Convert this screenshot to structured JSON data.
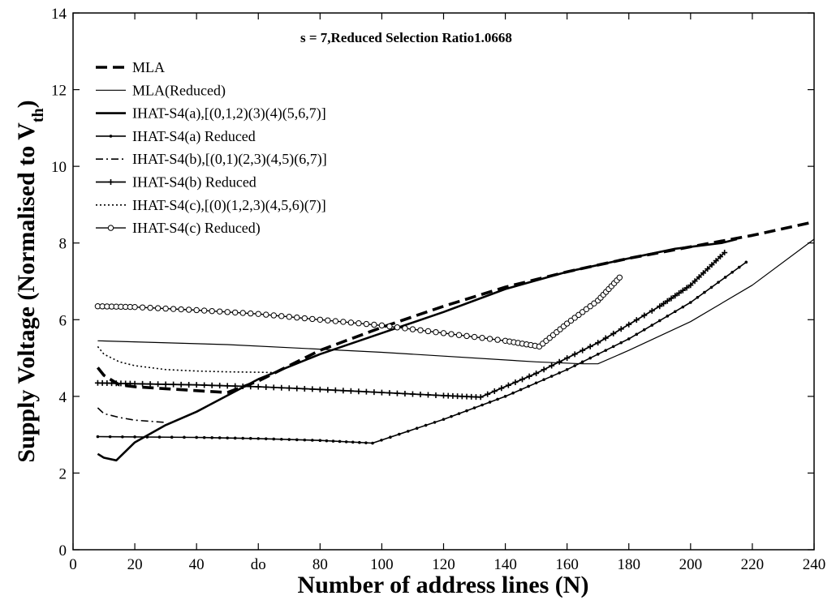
{
  "chart_data": {
    "type": "line",
    "title": "",
    "annotation": "s = 7,Reduced Selection Ratio1.0668",
    "xlabel": "Number of address lines (N)",
    "ylabel": "Supply Voltage (Normalised to V",
    "ylabel_sub": "th",
    "ylabel_close": ")",
    "xlim": [
      0,
      240
    ],
    "ylim": [
      0,
      14
    ],
    "xticks": [
      0,
      20,
      40,
      60,
      80,
      100,
      120,
      140,
      160,
      180,
      200,
      220,
      240
    ],
    "xtick_labels": [
      "0",
      "20",
      "40",
      "do",
      "80",
      "100",
      "120",
      "140",
      "160",
      "180",
      "200",
      "220",
      "240"
    ],
    "yticks": [
      0,
      2,
      4,
      6,
      8,
      10,
      12,
      14
    ],
    "grid": false,
    "legend_position": "top-left",
    "series": [
      {
        "name": "MLA",
        "style": "dashed-thick",
        "x": [
          8,
          10,
          15,
          20,
          30,
          40,
          50,
          60,
          80,
          100,
          120,
          140,
          160,
          180,
          200,
          220,
          240
        ],
        "y": [
          4.75,
          4.55,
          4.3,
          4.25,
          4.2,
          4.15,
          4.1,
          4.4,
          5.2,
          5.8,
          6.35,
          6.85,
          7.25,
          7.6,
          7.9,
          8.2,
          8.55
        ]
      },
      {
        "name": "MLA(Reduced)",
        "style": "solid-thin",
        "x": [
          8,
          50,
          100,
          150,
          165,
          170,
          180,
          200,
          220,
          240
        ],
        "y": [
          5.45,
          5.35,
          5.15,
          4.9,
          4.85,
          4.85,
          5.2,
          5.95,
          6.9,
          8.1
        ]
      },
      {
        "name": "IHAT-S4(a),[(0,1,2)(3)(4)(5,6,7)]",
        "style": "solid-thick",
        "x": [
          8,
          10,
          14,
          20,
          30,
          40,
          60,
          80,
          100,
          120,
          140,
          160,
          180,
          195,
          210,
          215
        ],
        "y": [
          2.5,
          2.4,
          2.33,
          2.8,
          3.25,
          3.6,
          4.45,
          5.1,
          5.65,
          6.2,
          6.8,
          7.25,
          7.6,
          7.85,
          8.0,
          8.1
        ]
      },
      {
        "name": "IHAT-S4(a) Reduced",
        "style": "solid-dot-markers",
        "x": [
          8,
          40,
          60,
          80,
          97,
          120,
          140,
          160,
          180,
          200,
          218
        ],
        "y": [
          2.95,
          2.93,
          2.9,
          2.85,
          2.78,
          3.4,
          4.0,
          4.7,
          5.5,
          6.45,
          7.5
        ]
      },
      {
        "name": "IHAT-S4(b),[(0,1)(2,3)(4,5)(6,7)]",
        "style": "dashdot",
        "x": [
          8,
          10,
          15,
          20,
          30
        ],
        "y": [
          3.7,
          3.55,
          3.45,
          3.38,
          3.32
        ]
      },
      {
        "name": "IHAT-S4(b) Reduced",
        "style": "solid-plus-markers",
        "x": [
          8,
          20,
          40,
          60,
          80,
          100,
          120,
          132,
          150,
          170,
          190,
          200,
          211
        ],
        "y": [
          4.35,
          4.33,
          4.3,
          4.25,
          4.18,
          4.1,
          4.02,
          3.98,
          4.6,
          5.4,
          6.35,
          6.9,
          7.75
        ]
      },
      {
        "name": "IHAT-S4(c),[(0)(1,2,3)(4,5,6)(7)]",
        "style": "dotted",
        "x": [
          8,
          10,
          15,
          20,
          30,
          40,
          50,
          60,
          65
        ],
        "y": [
          5.3,
          5.1,
          4.9,
          4.8,
          4.7,
          4.66,
          4.64,
          4.63,
          4.62
        ]
      },
      {
        "name": "IHAT-S4(c) Reduced)",
        "style": "solid-circle-markers",
        "x": [
          8,
          20,
          40,
          60,
          80,
          100,
          120,
          140,
          151,
          160,
          170,
          177
        ],
        "y": [
          6.35,
          6.33,
          6.25,
          6.15,
          6.0,
          5.85,
          5.65,
          5.45,
          5.3,
          5.9,
          6.5,
          7.1
        ]
      }
    ]
  }
}
